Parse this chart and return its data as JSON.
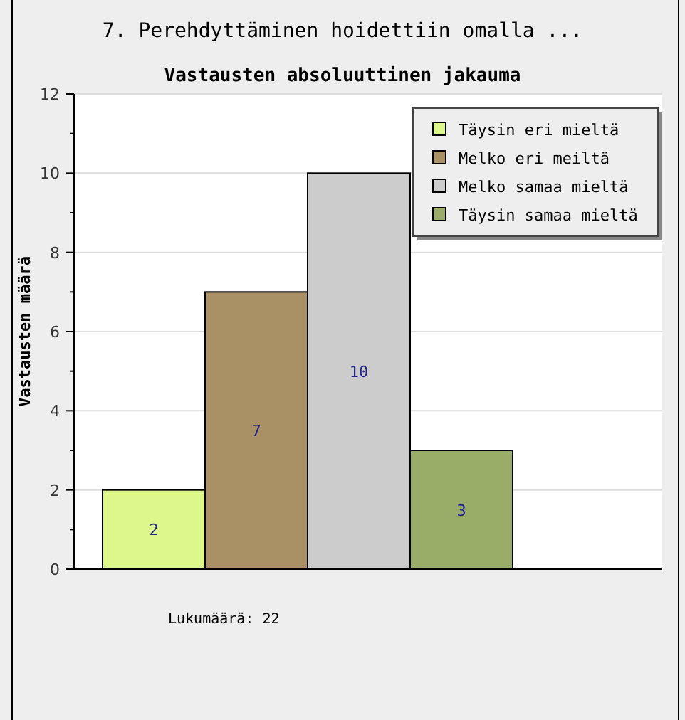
{
  "chart_data": {
    "type": "bar",
    "title": "7. Perehdyttäminen hoidettiin omalla ...",
    "subtitle": "Vastausten absoluuttinen jakauma",
    "ylabel": "Vastausten määrä",
    "categories": [
      null
    ],
    "series": [
      {
        "name": "Täysin eri mieltä",
        "color": "#dcf78a",
        "values": [
          2
        ]
      },
      {
        "name": "Melko eri meiltä",
        "color": "#aa9065",
        "values": [
          7
        ]
      },
      {
        "name": "Melko samaa mieltä",
        "color": "#cccccc",
        "values": [
          10
        ]
      },
      {
        "name": "Täysin samaa mieltä",
        "color": "#99ad68",
        "values": [
          3
        ]
      }
    ],
    "ylim": [
      0,
      12
    ],
    "yticks": [
      0,
      {
        "value": 1,
        "label": null
      },
      2,
      {
        "value": 3,
        "label": null
      },
      4,
      {
        "value": 5,
        "label": null
      },
      6,
      {
        "value": 7,
        "label": null
      },
      8,
      {
        "value": 9,
        "label": null
      },
      10,
      {
        "value": 11,
        "label": null
      },
      12
    ],
    "grid": "y",
    "legend": "top right",
    "tick_labels": "y",
    "data_labels": true,
    "annotations": [
      "Lukumäärä: 22"
    ]
  }
}
